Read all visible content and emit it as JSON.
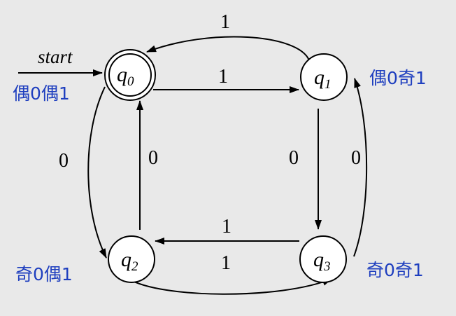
{
  "diagram": {
    "start_label": "start",
    "states": {
      "q0": {
        "name": "q",
        "sub": "0",
        "annotation": "偶0偶1",
        "accepting": true
      },
      "q1": {
        "name": "q",
        "sub": "1",
        "annotation": "偶0奇1",
        "accepting": false
      },
      "q2": {
        "name": "q",
        "sub": "2",
        "annotation": "奇0偶1",
        "accepting": false
      },
      "q3": {
        "name": "q",
        "sub": "3",
        "annotation": "奇0奇1",
        "accepting": false
      }
    },
    "transitions": [
      {
        "from": "q0",
        "to": "q1",
        "label": "1"
      },
      {
        "from": "q1",
        "to": "q0",
        "label": "1"
      },
      {
        "from": "q0",
        "to": "q2",
        "label": "0"
      },
      {
        "from": "q2",
        "to": "q0",
        "label": "0"
      },
      {
        "from": "q1",
        "to": "q3",
        "label": "0"
      },
      {
        "from": "q3",
        "to": "q1",
        "label": "0"
      },
      {
        "from": "q3",
        "to": "q2",
        "label": "1"
      },
      {
        "from": "q2",
        "to": "q3",
        "label": "1"
      }
    ],
    "colors": {
      "annotation": "#1f3fbf",
      "background": "#e9e9e9",
      "line": "#000000"
    }
  }
}
